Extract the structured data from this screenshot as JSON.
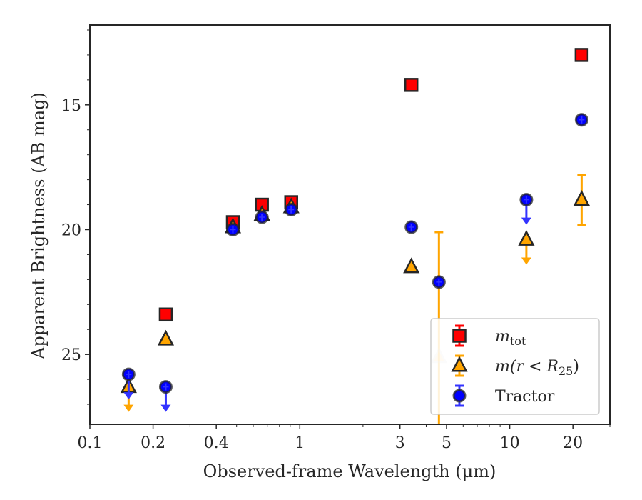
{
  "chart_data": {
    "type": "scatter",
    "title": "",
    "xlabel": "Observed-frame Wavelength (μm)",
    "ylabel": "Apparent Brightness (AB mag)",
    "xscale": "log",
    "xlim": [
      0.1,
      30
    ],
    "ylim": [
      27.8,
      11.8
    ],
    "y_inverted": true,
    "x_ticks": [
      0.1,
      0.2,
      0.4,
      1,
      3,
      5,
      10,
      20
    ],
    "x_tick_labels": [
      "0.1",
      "0.2",
      "0.4",
      "1",
      "3",
      "5",
      "10",
      "20"
    ],
    "y_ticks": [
      15,
      20,
      25
    ],
    "y_tick_labels": [
      "15",
      "20",
      "25"
    ],
    "grid": false,
    "legend_position": "lower-right",
    "series": [
      {
        "name": "m_tot",
        "legend_label": {
          "main": "m",
          "sub": "tot"
        },
        "marker": "square",
        "face_color": "#ff0000",
        "edge_color": "#262626",
        "errbar_color": "#ff0000",
        "points": [
          {
            "x": 0.23,
            "y": 23.4
          },
          {
            "x": 0.48,
            "y": 19.7
          },
          {
            "x": 0.66,
            "y": 19.0
          },
          {
            "x": 0.91,
            "y": 18.9
          },
          {
            "x": 3.4,
            "y": 14.2
          },
          {
            "x": 22.0,
            "y": 13.0
          }
        ]
      },
      {
        "name": "m(r < R25)",
        "legend_label": {
          "main": "m(r < R",
          "sub": "25",
          "end": ")"
        },
        "marker": "triangle",
        "face_color": "#ffa500",
        "edge_color": "#262626",
        "errbar_color": "#ffa500",
        "points": [
          {
            "x": 0.153,
            "y": 26.3,
            "upper_limit": true
          },
          {
            "x": 0.23,
            "y": 24.4
          },
          {
            "x": 0.48,
            "y": 19.9
          },
          {
            "x": 0.66,
            "y": 19.4
          },
          {
            "x": 0.91,
            "y": 19.1
          },
          {
            "x": 3.4,
            "y": 21.5
          },
          {
            "x": 4.6,
            "y": 25.1,
            "err": 5.0,
            "faded": true
          },
          {
            "x": 12.0,
            "y": 20.4,
            "upper_limit": true
          },
          {
            "x": 22.0,
            "y": 18.8,
            "err": 1.0
          }
        ]
      },
      {
        "name": "Tractor",
        "legend_label": {
          "main": "Tractor"
        },
        "marker": "circle",
        "face_color": "#0000ff",
        "edge_color": "#262626",
        "errbar_color": "#3333ff",
        "points": [
          {
            "x": 0.153,
            "y": 25.8,
            "upper_limit": true
          },
          {
            "x": 0.23,
            "y": 26.3,
            "upper_limit": true
          },
          {
            "x": 0.48,
            "y": 20.0
          },
          {
            "x": 0.66,
            "y": 19.5
          },
          {
            "x": 0.91,
            "y": 19.2
          },
          {
            "x": 3.4,
            "y": 19.9
          },
          {
            "x": 4.6,
            "y": 22.1
          },
          {
            "x": 12.0,
            "y": 18.8,
            "upper_limit": true
          },
          {
            "x": 22.0,
            "y": 15.6
          }
        ]
      }
    ]
  }
}
